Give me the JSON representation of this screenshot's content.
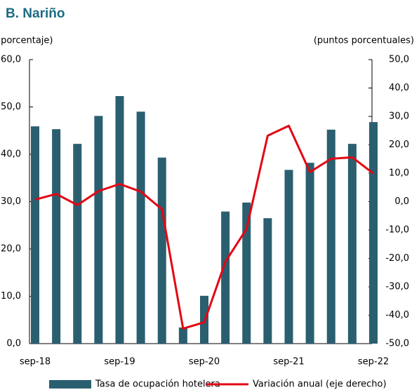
{
  "chart_data": {
    "type": "bar-line",
    "title": "B. Nariño",
    "y_label": "(porcentaje)",
    "y2_label": "(puntos porcentuales)",
    "categories": [
      "sep-18",
      null,
      null,
      null,
      "sep-19",
      null,
      null,
      null,
      "sep-20",
      null,
      null,
      null,
      "sep-21",
      null,
      null,
      null,
      "sep-22"
    ],
    "series": [
      {
        "name": "Tasa de ocupación hotelera",
        "color": "#2a5f70",
        "type": "bar",
        "values": [
          45.9,
          45.3,
          42.2,
          48.1,
          52.3,
          49.0,
          39.3,
          3.4,
          10.1,
          27.9,
          29.8,
          26.5,
          36.7,
          38.2,
          45.2,
          42.2,
          46.8
        ]
      },
      {
        "name": "Variación anual (eje derecho)",
        "color": "#e30613",
        "type": "line",
        "axis": "y2",
        "values": [
          0.7,
          2.7,
          -1.2,
          3.7,
          6.2,
          3.5,
          -2.7,
          -44.7,
          -42.5,
          -21.2,
          -9.6,
          23.2,
          26.7,
          10.4,
          15.1,
          15.6,
          9.9
        ]
      }
    ],
    "ylim": [
      0,
      60
    ],
    "yticks": [
      {
        "value": 0,
        "label": "0,0"
      },
      {
        "value": 10,
        "label": "10,0"
      },
      {
        "value": 20,
        "label": "20,0"
      },
      {
        "value": 30,
        "label": "30,0"
      },
      {
        "value": 40,
        "label": "40,0"
      },
      {
        "value": 50,
        "label": "50,0"
      },
      {
        "value": 60,
        "label": "60,0"
      }
    ],
    "y2lim": [
      -50,
      50
    ],
    "y2ticks": [
      {
        "value": -50,
        "label": "-50,0"
      },
      {
        "value": -40,
        "label": "-40,0"
      },
      {
        "value": -30,
        "label": "-30,0"
      },
      {
        "value": -20,
        "label": "-20,0"
      },
      {
        "value": -10,
        "label": "-10,0"
      },
      {
        "value": 0,
        "label": "0,0"
      },
      {
        "value": 10,
        "label": "10,0"
      },
      {
        "value": 20,
        "label": "20,0"
      },
      {
        "value": 30,
        "label": "30,0"
      },
      {
        "value": 40,
        "label": "40,0"
      },
      {
        "value": 50,
        "label": "50,0"
      }
    ],
    "legend": "bottom"
  }
}
